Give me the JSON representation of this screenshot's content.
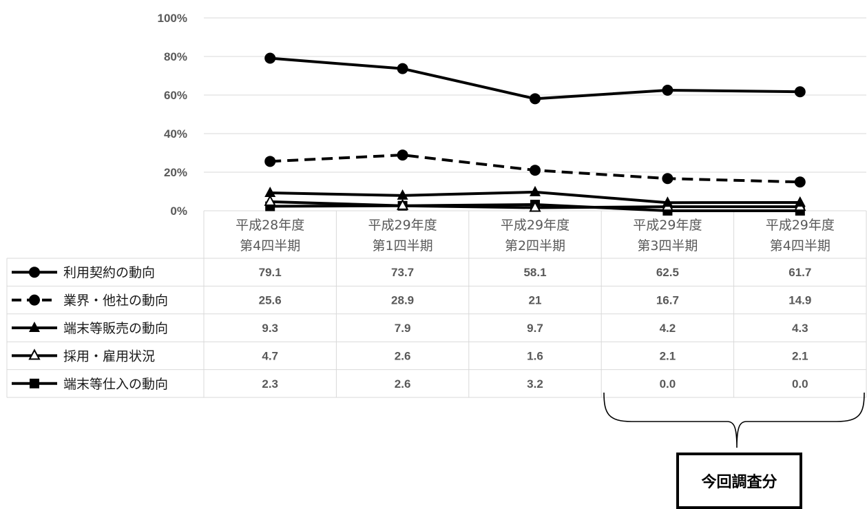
{
  "chart_data": {
    "type": "line",
    "categories": [
      [
        "平成28年度",
        "第4四半期"
      ],
      [
        "平成29年度",
        "第1四半期"
      ],
      [
        "平成29年度",
        "第2四半期"
      ],
      [
        "平成29年度",
        "第3四半期"
      ],
      [
        "平成29年度",
        "第4四半期"
      ]
    ],
    "ylim": [
      0,
      100
    ],
    "yticks": [
      "0%",
      "20%",
      "40%",
      "60%",
      "80%",
      "100%"
    ],
    "grid": true,
    "legend": "table-left",
    "series": [
      {
        "name": "利用契約の動向",
        "values": [
          79.1,
          73.7,
          58.1,
          62.5,
          61.7
        ],
        "labels": [
          "79.1",
          "73.7",
          "58.1",
          "62.5",
          "61.7"
        ],
        "marker": "circle",
        "dash": "solid"
      },
      {
        "name": "業界・他社の動向",
        "values": [
          25.6,
          28.9,
          21,
          16.7,
          14.9
        ],
        "labels": [
          "25.6",
          "28.9",
          "21",
          "16.7",
          "14.9"
        ],
        "marker": "circle",
        "dash": "dashed"
      },
      {
        "name": "端末等販売の動向",
        "values": [
          9.3,
          7.9,
          9.7,
          4.2,
          4.3
        ],
        "labels": [
          "9.3",
          "7.9",
          "9.7",
          "4.2",
          "4.3"
        ],
        "marker": "triangle",
        "dash": "solid"
      },
      {
        "name": "採用・雇用状況",
        "values": [
          4.7,
          2.6,
          1.6,
          2.1,
          2.1
        ],
        "labels": [
          "4.7",
          "2.6",
          "1.6",
          "2.1",
          "2.1"
        ],
        "marker": "triangle-open",
        "dash": "solid"
      },
      {
        "name": "端末等仕入の動向",
        "values": [
          2.3,
          2.6,
          3.2,
          0.0,
          0.0
        ],
        "labels": [
          "2.3",
          "2.6",
          "3.2",
          "0.0",
          "0.0"
        ],
        "marker": "square",
        "dash": "solid"
      }
    ],
    "line_color": "#000000",
    "grid_color": "#d9d9d9",
    "text_color": "#595959"
  },
  "annotation": {
    "text": "今回調査分"
  }
}
